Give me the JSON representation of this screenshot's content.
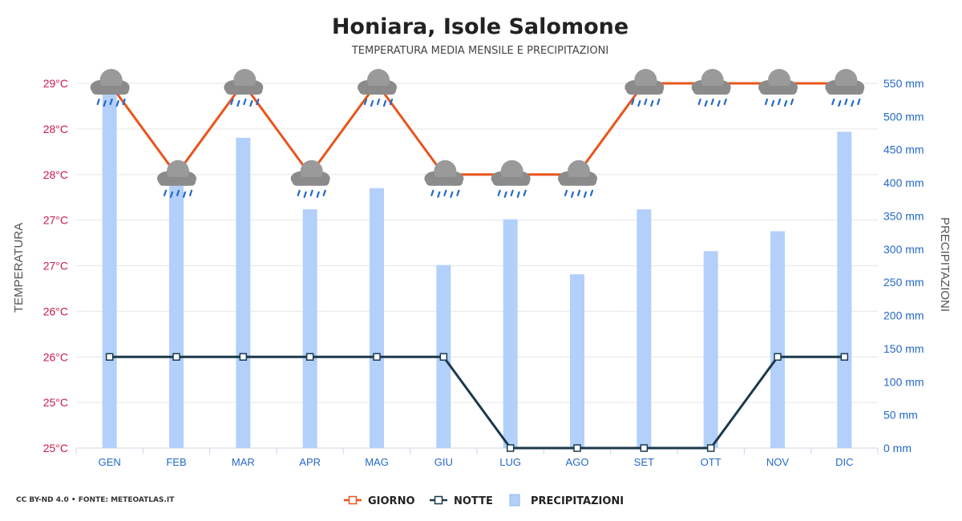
{
  "chart_data": {
    "type": "bar",
    "title": "Honiara, Isole Salomone",
    "subtitle": "TEMPERATURA MEDIA MENSILE E PRECIPITAZIONI",
    "categories": [
      "GEN",
      "FEB",
      "MAR",
      "APR",
      "MAG",
      "GIU",
      "LUG",
      "AGO",
      "SET",
      "OTT",
      "NOV",
      "DIC"
    ],
    "left_axis": {
      "label": "TEMPERATURA",
      "tick_labels": [
        "25°C",
        "25°C",
        "26°C",
        "26°C",
        "27°C",
        "27°C",
        "28°C",
        "28°C",
        "29°C"
      ],
      "ylim": [
        25,
        29
      ],
      "color": "#cc1a4a"
    },
    "right_axis": {
      "label": "PRECIPITAZIONI",
      "tick_labels": [
        "0 mm",
        "50 mm",
        "100 mm",
        "150 mm",
        "200 mm",
        "250 mm",
        "300 mm",
        "350 mm",
        "400 mm",
        "450 mm",
        "500 mm",
        "550 mm"
      ],
      "ylim": [
        0,
        550
      ],
      "color": "#2469c6"
    },
    "series": [
      {
        "name": "GIORNO",
        "type": "line",
        "axis": "left",
        "color": "#e8541c",
        "values": [
          29,
          28,
          29,
          28,
          29,
          28,
          28,
          28,
          29,
          29,
          29,
          29
        ]
      },
      {
        "name": "NOTTE",
        "type": "line",
        "axis": "left",
        "color": "#1b3a4b",
        "values": [
          26,
          26,
          26,
          26,
          26,
          26,
          25,
          25,
          25,
          25,
          26,
          26
        ]
      },
      {
        "name": "PRECIPITAZIONI",
        "type": "bar",
        "axis": "right",
        "color": "#b3d0fb",
        "values": [
          545,
          400,
          468,
          360,
          392,
          276,
          345,
          262,
          360,
          297,
          327,
          477
        ]
      }
    ],
    "weather_icons": [
      "rain-cloud-icon",
      "rain-cloud-icon",
      "rain-cloud-icon",
      "rain-cloud-icon",
      "rain-cloud-icon",
      "rain-cloud-icon",
      "rain-cloud-icon",
      "rain-cloud-icon",
      "rain-cloud-icon",
      "rain-cloud-icon",
      "rain-cloud-icon",
      "rain-cloud-icon"
    ],
    "grid": true,
    "legend_position": "bottom-center"
  },
  "legend": {
    "giorno": "GIORNO",
    "notte": "NOTTE",
    "precipitazioni": "PRECIPITAZIONI"
  },
  "source": "CC BY-ND 4.0 • FONTE: METEOATLAS.IT"
}
